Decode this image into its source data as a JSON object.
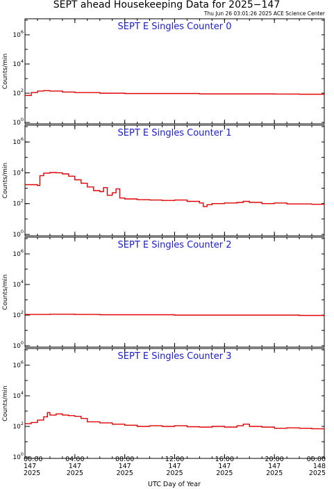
{
  "header": {
    "title": "SEPT ahead Housekeeping Data for 2025−147",
    "subtitle": "Thu Jun 26 03:01:26 2025 ACE Science Center"
  },
  "colors": {
    "series": "#e00000",
    "panel_title": "#1a1ad6",
    "frame": "#000000"
  },
  "chart_data": {
    "type": "line",
    "xlabel": "UTC Day of Year",
    "ylabel": "Counts/min",
    "yscale": "log",
    "ylim": [
      1,
      10000000
    ],
    "xlim_hours": [
      0,
      24
    ],
    "yticks": [
      {
        "base": "10",
        "exp": "0"
      },
      {
        "base": "10",
        "exp": "2"
      },
      {
        "base": "10",
        "exp": "4"
      },
      {
        "base": "10",
        "exp": "6"
      }
    ],
    "xticks": [
      {
        "hour": 0,
        "time": "00:00",
        "day": "147",
        "year": "2025"
      },
      {
        "hour": 4,
        "time": "04:00",
        "day": "147",
        "year": "2025"
      },
      {
        "hour": 8,
        "time": "08:00",
        "day": "147",
        "year": "2025"
      },
      {
        "hour": 12,
        "time": "12:00",
        "day": "147",
        "year": "2025"
      },
      {
        "hour": 16,
        "time": "16:00",
        "day": "147",
        "year": "2025"
      },
      {
        "hour": 20,
        "time": "20:00",
        "day": "147",
        "year": "2025"
      },
      {
        "hour": 24,
        "time": "00:00",
        "day": "148",
        "year": "2025"
      }
    ],
    "panels": [
      {
        "name": "SEPT E Singles Counter 0",
        "x_hours": [
          0,
          0.5,
          1.0,
          1.5,
          2.0,
          3.0,
          4.0,
          6.0,
          8.0,
          10.0,
          12.0,
          14.0,
          16.0,
          18.0,
          20.0,
          22.0,
          24.0
        ],
        "values": [
          70,
          110,
          140,
          150,
          140,
          120,
          110,
          100,
          95,
          95,
          95,
          90,
          90,
          90,
          88,
          85,
          80
        ]
      },
      {
        "name": "SEPT E Singles Counter 1",
        "x_hours": [
          0,
          0.5,
          1.0,
          1.2,
          1.5,
          2.0,
          2.5,
          3.0,
          3.5,
          4.0,
          4.5,
          5.0,
          5.5,
          6.0,
          6.3,
          6.6,
          7.0,
          7.3,
          7.6,
          8.0,
          9.0,
          10.0,
          11.0,
          12.0,
          13.0,
          14.0,
          14.3,
          14.6,
          15.0,
          16.0,
          17.0,
          17.5,
          18.0,
          19.0,
          20.0,
          21.0,
          22.0,
          23.0,
          24.0
        ],
        "values": [
          1700,
          1700,
          1500,
          6500,
          9500,
          10500,
          10000,
          8500,
          6000,
          3500,
          2100,
          1200,
          700,
          600,
          1100,
          350,
          500,
          900,
          230,
          200,
          180,
          170,
          160,
          170,
          140,
          110,
          65,
          85,
          100,
          110,
          120,
          140,
          120,
          100,
          110,
          95,
          95,
          90,
          90
        ]
      },
      {
        "name": "SEPT E Singles Counter 2",
        "x_hours": [
          0,
          2.0,
          4.0,
          6.0,
          8.0,
          10.0,
          12.0,
          14.0,
          16.0,
          18.0,
          20.0,
          22.0,
          24.0
        ],
        "values": [
          110,
          115,
          110,
          105,
          105,
          105,
          100,
          100,
          100,
          100,
          100,
          95,
          85
        ]
      },
      {
        "name": "SEPT E Singles Counter 3",
        "x_hours": [
          0,
          0.5,
          1.0,
          1.5,
          1.8,
          2.0,
          2.5,
          3.0,
          3.5,
          4.0,
          4.5,
          5.0,
          6.0,
          7.0,
          8.0,
          9.0,
          10.0,
          11.0,
          12.0,
          13.0,
          14.0,
          15.0,
          16.0,
          17.0,
          17.5,
          18.0,
          19.0,
          20.0,
          21.0,
          22.0,
          23.0,
          24.0
        ],
        "values": [
          150,
          180,
          260,
          420,
          800,
          550,
          650,
          550,
          500,
          450,
          330,
          200,
          170,
          140,
          120,
          100,
          110,
          100,
          110,
          95,
          90,
          100,
          90,
          110,
          140,
          100,
          90,
          75,
          80,
          75,
          70,
          65
        ]
      }
    ]
  }
}
